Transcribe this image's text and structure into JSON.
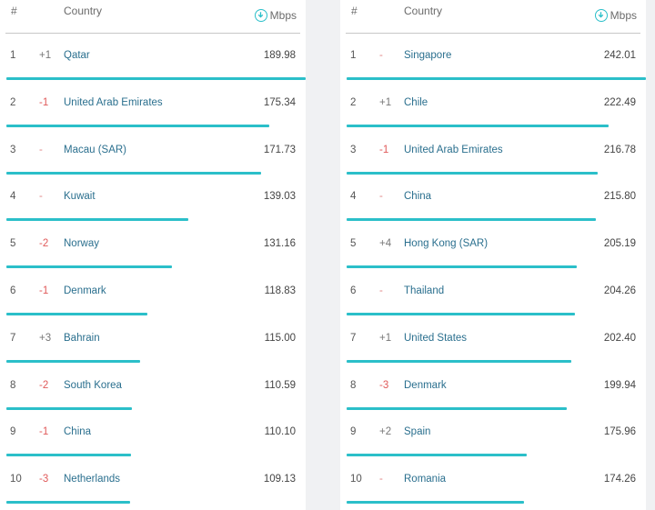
{
  "left": {
    "header": {
      "hash": "#",
      "country": "Country",
      "unit": "Mbps"
    },
    "max": 189.98,
    "rows": [
      {
        "rank": "1",
        "change": "+1",
        "country": "Qatar",
        "value": "189.98",
        "num": 189.98
      },
      {
        "rank": "2",
        "change": "-1",
        "country": "United Arab Emirates",
        "value": "175.34",
        "num": 175.34
      },
      {
        "rank": "3",
        "change": "-",
        "country": "Macau (SAR)",
        "value": "171.73",
        "num": 171.73
      },
      {
        "rank": "4",
        "change": "-",
        "country": "Kuwait",
        "value": "139.03",
        "num": 139.03
      },
      {
        "rank": "5",
        "change": "-2",
        "country": "Norway",
        "value": "131.16",
        "num": 131.16
      },
      {
        "rank": "6",
        "change": "-1",
        "country": "Denmark",
        "value": "118.83",
        "num": 118.83
      },
      {
        "rank": "7",
        "change": "+3",
        "country": "Bahrain",
        "value": "115.00",
        "num": 115.0
      },
      {
        "rank": "8",
        "change": "-2",
        "country": "South Korea",
        "value": "110.59",
        "num": 110.59
      },
      {
        "rank": "9",
        "change": "-1",
        "country": "China",
        "value": "110.10",
        "num": 110.1
      },
      {
        "rank": "10",
        "change": "-3",
        "country": "Netherlands",
        "value": "109.13",
        "num": 109.13
      }
    ]
  },
  "right": {
    "header": {
      "hash": "#",
      "country": "Country",
      "unit": "Mbps"
    },
    "max": 242.01,
    "rows": [
      {
        "rank": "1",
        "change": "-",
        "country": "Singapore",
        "value": "242.01",
        "num": 242.01
      },
      {
        "rank": "2",
        "change": "+1",
        "country": "Chile",
        "value": "222.49",
        "num": 222.49
      },
      {
        "rank": "3",
        "change": "-1",
        "country": "United Arab Emirates",
        "value": "216.78",
        "num": 216.78
      },
      {
        "rank": "4",
        "change": "-",
        "country": "China",
        "value": "215.80",
        "num": 215.8
      },
      {
        "rank": "5",
        "change": "+4",
        "country": "Hong Kong (SAR)",
        "value": "205.19",
        "num": 205.19
      },
      {
        "rank": "6",
        "change": "-",
        "country": "Thailand",
        "value": "204.26",
        "num": 204.26
      },
      {
        "rank": "7",
        "change": "+1",
        "country": "United States",
        "value": "202.40",
        "num": 202.4
      },
      {
        "rank": "8",
        "change": "-3",
        "country": "Denmark",
        "value": "199.94",
        "num": 199.94
      },
      {
        "rank": "9",
        "change": "+2",
        "country": "Spain",
        "value": "175.96",
        "num": 175.96
      },
      {
        "rank": "10",
        "change": "-",
        "country": "Romania",
        "value": "174.26",
        "num": 174.26
      }
    ]
  },
  "colors": {
    "bar": "#2bbfc9",
    "country_link": "#2a6f8e",
    "decline": "#e05a5a"
  },
  "icons": {
    "unit": "download-circle-icon"
  }
}
